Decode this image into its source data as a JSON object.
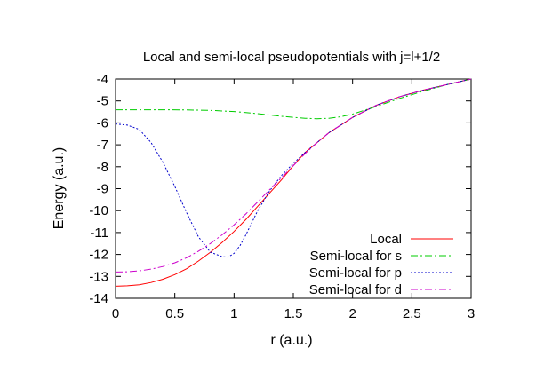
{
  "chart_data": {
    "type": "line",
    "title": "Local and semi-local pseudopotentials with j=l+1/2",
    "xlabel": "r (a.u.)",
    "ylabel": "Energy (a.u.)",
    "xlim": [
      0,
      3
    ],
    "ylim": [
      -14,
      -4
    ],
    "xticks": [
      "0",
      "0.5",
      "1",
      "1.5",
      "2",
      "2.5",
      "3"
    ],
    "yticks": [
      "-4",
      "-5",
      "-6",
      "-7",
      "-8",
      "-9",
      "-10",
      "-11",
      "-12",
      "-13",
      "-14"
    ],
    "grid": false,
    "legend_position": "bottom-right",
    "series": [
      {
        "name": "Local",
        "color": "#ff0000",
        "style": "solid",
        "x": [
          0,
          0.1,
          0.2,
          0.3,
          0.4,
          0.5,
          0.6,
          0.7,
          0.8,
          0.9,
          1.0,
          1.1,
          1.2,
          1.3,
          1.4,
          1.5,
          1.6,
          1.7,
          1.8,
          1.9,
          2.0,
          2.2,
          2.4,
          2.6,
          2.8,
          3.0
        ],
        "y": [
          -13.45,
          -13.43,
          -13.38,
          -13.28,
          -13.13,
          -12.92,
          -12.65,
          -12.3,
          -11.9,
          -11.45,
          -10.95,
          -10.4,
          -9.8,
          -9.2,
          -8.6,
          -7.95,
          -7.35,
          -6.9,
          -6.45,
          -6.1,
          -5.75,
          -5.2,
          -4.8,
          -4.5,
          -4.25,
          -4.0
        ]
      },
      {
        "name": "Semi-local for s",
        "color": "#00cc00",
        "style": "dash-dot",
        "x": [
          0,
          0.2,
          0.4,
          0.6,
          0.8,
          1.0,
          1.2,
          1.4,
          1.6,
          1.7,
          1.8,
          1.9,
          2.0,
          2.2,
          2.4,
          2.6,
          2.8,
          3.0
        ],
        "y": [
          -5.4,
          -5.4,
          -5.4,
          -5.41,
          -5.43,
          -5.48,
          -5.58,
          -5.7,
          -5.79,
          -5.81,
          -5.79,
          -5.72,
          -5.6,
          -5.25,
          -4.88,
          -4.55,
          -4.25,
          -4.0
        ]
      },
      {
        "name": "Semi-local for p",
        "color": "#0000cc",
        "style": "dotted",
        "x": [
          0,
          0.1,
          0.2,
          0.3,
          0.4,
          0.5,
          0.6,
          0.7,
          0.8,
          0.9,
          0.95,
          1.0,
          1.05,
          1.1,
          1.15,
          1.2,
          1.3,
          1.4,
          1.5,
          1.6,
          1.7,
          1.8,
          1.9,
          2.0,
          2.2,
          2.4,
          2.6,
          2.8,
          3.0
        ],
        "y": [
          -6.05,
          -6.1,
          -6.3,
          -6.9,
          -7.8,
          -8.9,
          -10.1,
          -11.2,
          -11.9,
          -12.1,
          -12.12,
          -11.95,
          -11.6,
          -11.1,
          -10.55,
          -10.0,
          -9.1,
          -8.4,
          -7.85,
          -7.35,
          -6.9,
          -6.45,
          -6.1,
          -5.75,
          -5.2,
          -4.8,
          -4.5,
          -4.25,
          -4.0
        ]
      },
      {
        "name": "Semi-local for d",
        "color": "#cc00cc",
        "style": "dash-dot",
        "x": [
          0,
          0.1,
          0.2,
          0.3,
          0.4,
          0.5,
          0.6,
          0.7,
          0.8,
          0.9,
          1.0,
          1.1,
          1.2,
          1.3,
          1.4,
          1.5,
          1.6,
          1.7,
          1.8,
          1.9,
          2.0,
          2.2,
          2.4,
          2.6,
          2.8,
          3.0
        ],
        "y": [
          -12.8,
          -12.79,
          -12.75,
          -12.67,
          -12.55,
          -12.38,
          -12.15,
          -11.85,
          -11.5,
          -11.1,
          -10.65,
          -10.15,
          -9.6,
          -9.05,
          -8.5,
          -7.95,
          -7.4,
          -6.9,
          -6.45,
          -6.1,
          -5.75,
          -5.2,
          -4.8,
          -4.5,
          -4.25,
          -4.0
        ]
      }
    ]
  }
}
